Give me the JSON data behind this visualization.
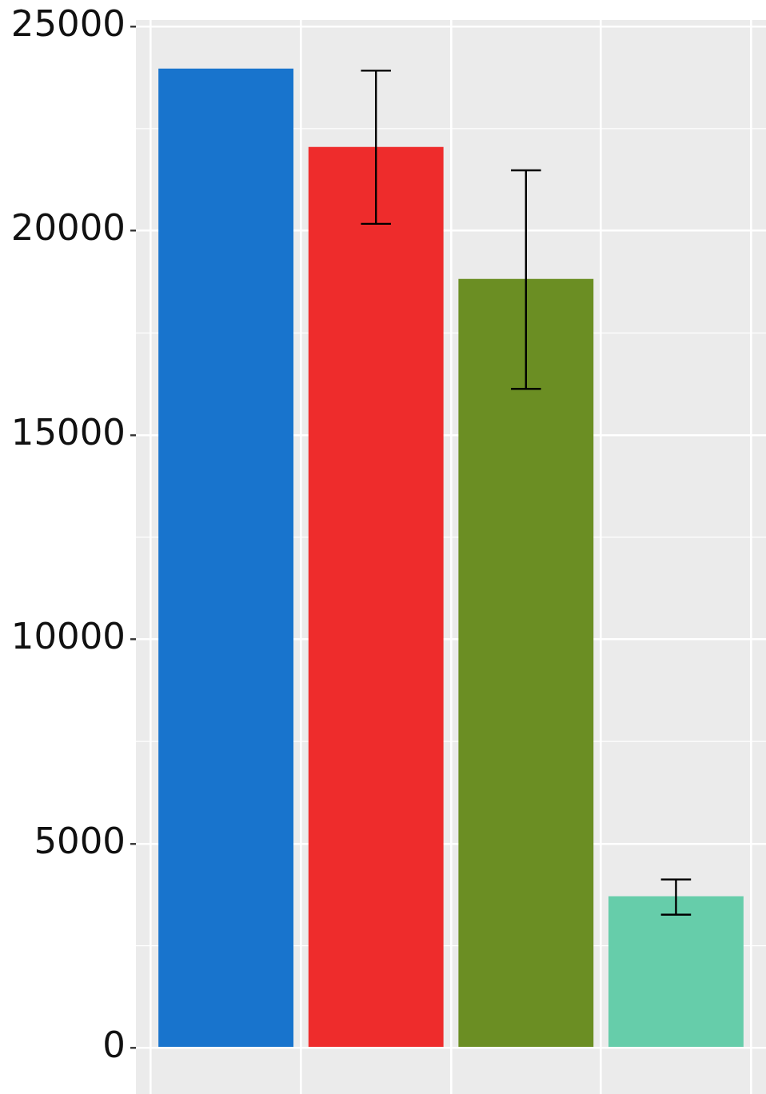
{
  "chart_data": {
    "type": "bar",
    "categories": [
      null,
      null,
      null,
      null
    ],
    "values": [
      23970,
      22050,
      18820,
      3710
    ],
    "colors": [
      "#1874cd",
      "#ee2c2c",
      "#6b8e23",
      "#66cdaa"
    ],
    "errors": [
      null,
      [
        20170,
        23920
      ],
      [
        16130,
        21480
      ],
      [
        3260,
        4120
      ]
    ],
    "ylim": [
      -1130,
      25160
    ],
    "yticks": [
      0,
      5000,
      10000,
      15000,
      20000,
      25000
    ],
    "grid": true
  }
}
